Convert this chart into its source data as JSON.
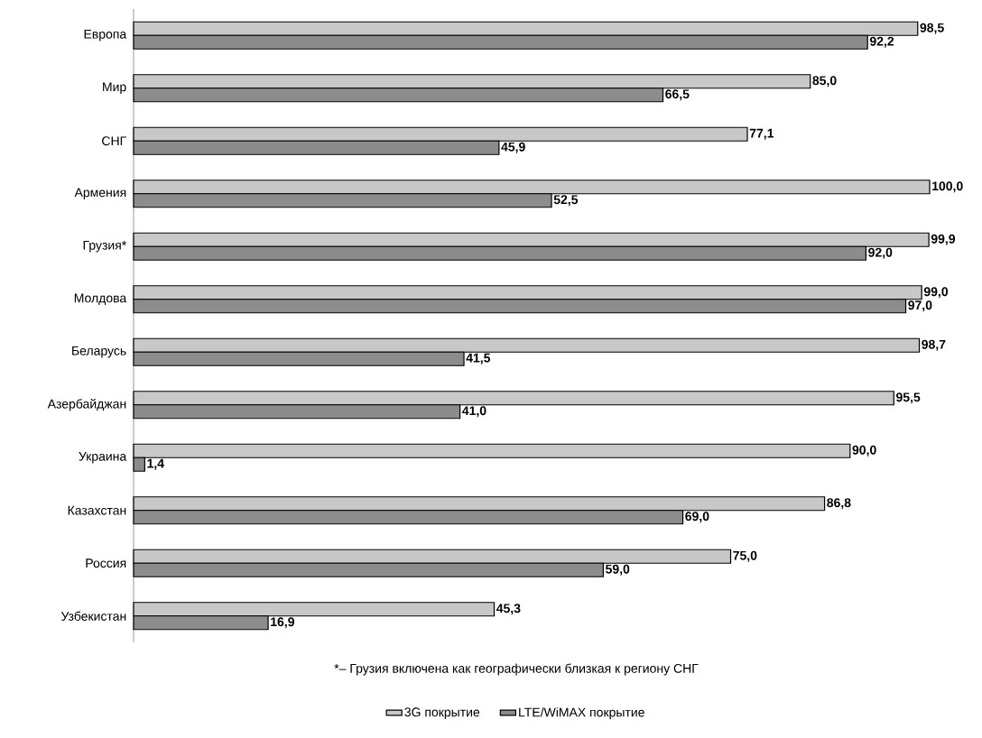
{
  "chart_data": {
    "type": "bar",
    "orientation": "horizontal",
    "categories": [
      "Европа",
      "Мир",
      "СНГ",
      "Армения",
      "Грузия*",
      "Молдова",
      "Беларусь",
      "Азербайджан",
      "Украина",
      "Казахстан",
      "Россия",
      "Узбекистан"
    ],
    "series": [
      {
        "name": "3G покрытие",
        "color": "#c8c8c8",
        "values": [
          98.5,
          85.0,
          77.1,
          100.0,
          99.9,
          99.0,
          98.7,
          95.5,
          90.0,
          86.8,
          75.0,
          45.3
        ],
        "value_labels": [
          "98,5",
          "85,0",
          "77,1",
          "100,0",
          "99,9",
          "99,0",
          "98,7",
          "95,5",
          "90,0",
          "86,8",
          "75,0",
          "45,3"
        ]
      },
      {
        "name": "LTE/WiMAX покрытие",
        "color": "#8c8c8c",
        "values": [
          92.2,
          66.5,
          45.9,
          52.5,
          92.0,
          97.0,
          41.5,
          41.0,
          1.4,
          69.0,
          59.0,
          16.9
        ],
        "value_labels": [
          "92,2",
          "66,5",
          "45,9",
          "52,5",
          "92,0",
          "97,0",
          "41,5",
          "41,0",
          "1,4",
          "69,0",
          "59,0",
          "16,9"
        ]
      }
    ],
    "xlim": [
      0,
      100
    ],
    "tick_labels": "y",
    "legend": "bottom",
    "annotations": [
      "*– Грузия включена как географически близкая к региону СНГ"
    ]
  }
}
